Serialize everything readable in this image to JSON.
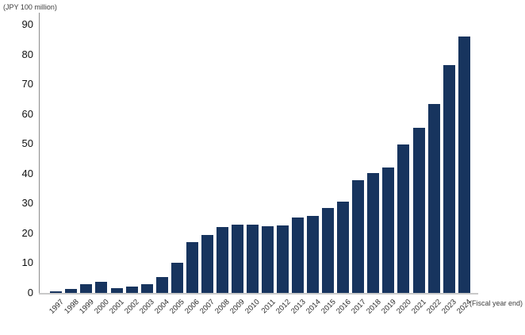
{
  "chart": {
    "unit_label": "(JPY 100 million)",
    "fiscal_label": "(Fiscal year end)"
  },
  "chart_data": {
    "type": "bar",
    "title": "",
    "unit_label": "(JPY 100 million)",
    "xlabel": "(Fiscal year end)",
    "ylabel": "",
    "ylim": [
      0,
      90
    ],
    "yticks": [
      0,
      10,
      20,
      30,
      40,
      50,
      60,
      70,
      80,
      90
    ],
    "grid": false,
    "legend": "none",
    "bar_color": "#17345e",
    "axis_line_color": "#8c8c8c",
    "baseline_color": "#c9c9c9",
    "categories": [
      "1997",
      "1998",
      "1999",
      "2000",
      "2001",
      "2002",
      "2003",
      "2004",
      "2005",
      "2006",
      "2007",
      "2008",
      "2009",
      "2010",
      "2011",
      "2012",
      "2013",
      "2014",
      "2015",
      "2016",
      "2017",
      "2018",
      "2019",
      "2020",
      "2021",
      "2022",
      "2023",
      "2024"
    ],
    "values": [
      0.6,
      1.2,
      2.8,
      3.7,
      1.6,
      2.1,
      3.0,
      5.4,
      10.0,
      17.0,
      19.4,
      22.0,
      22.8,
      22.8,
      22.4,
      22.6,
      25.3,
      25.7,
      28.5,
      30.5,
      37.8,
      40.2,
      42.0,
      49.8,
      55.3,
      63.4,
      76.5,
      86.0
    ]
  }
}
